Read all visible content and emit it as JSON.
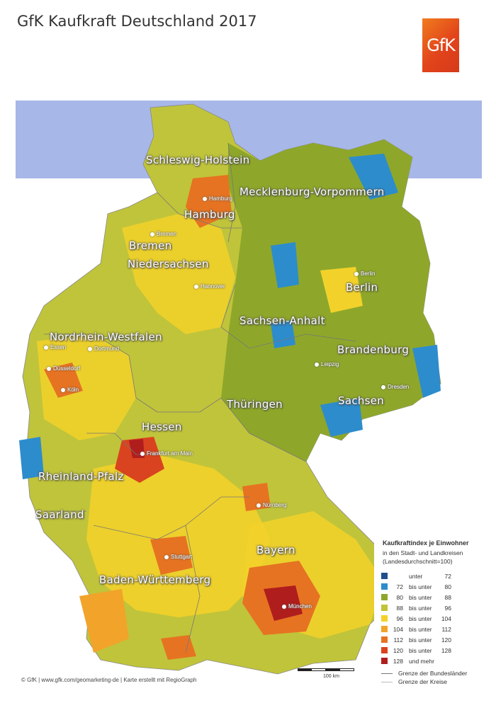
{
  "title": "GfK Kaufkraft Deutschland 2017",
  "logo_text": "GfK",
  "colors": {
    "sea": "#a7b7e8",
    "neighbors": "#ffffff",
    "lt72": "#1f4e8c",
    "c72_80": "#2d8ccc",
    "c80_88": "#8ea72a",
    "c88_96": "#c0c43a",
    "c96_104": "#f2d22a",
    "c104_112": "#f2a32a",
    "c112_120": "#e67322",
    "c120_128": "#d9431f",
    "c128": "#b01d1d"
  },
  "states": [
    {
      "name": "Schleswig-Holstein"
    },
    {
      "name": "Mecklenburg-Vorpommern"
    },
    {
      "name": "Hamburg"
    },
    {
      "name": "Bremen"
    },
    {
      "name": "Niedersachsen"
    },
    {
      "name": "Berlin"
    },
    {
      "name": "Sachsen-Anhalt"
    },
    {
      "name": "Brandenburg"
    },
    {
      "name": "Nordrhein-Westfalen"
    },
    {
      "name": "Thüringen"
    },
    {
      "name": "Sachsen"
    },
    {
      "name": "Hessen"
    },
    {
      "name": "Rheinland-Pfalz"
    },
    {
      "name": "Saarland"
    },
    {
      "name": "Bayern"
    },
    {
      "name": "Baden-Württemberg"
    }
  ],
  "cities": [
    {
      "name": "Hamburg"
    },
    {
      "name": "Bremen"
    },
    {
      "name": "Hannover"
    },
    {
      "name": "Berlin"
    },
    {
      "name": "Essen"
    },
    {
      "name": "Dortmund"
    },
    {
      "name": "Düsseldorf"
    },
    {
      "name": "Köln"
    },
    {
      "name": "Leipzig"
    },
    {
      "name": "Dresden"
    },
    {
      "name": "Frankfurt am Main"
    },
    {
      "name": "Nürnberg"
    },
    {
      "name": "Stuttgart"
    },
    {
      "name": "München"
    }
  ],
  "legend": {
    "title": "Kaufkraftindex je Einwohner",
    "subtitle1": "in den Stadt- und Landkreisen",
    "subtitle2": "(Landesdurchschnitt=100)",
    "rows": [
      {
        "from": "",
        "text": "unter",
        "to": "72"
      },
      {
        "from": "72",
        "text": "bis unter",
        "to": "80"
      },
      {
        "from": "80",
        "text": "bis unter",
        "to": "88"
      },
      {
        "from": "88",
        "text": "bis unter",
        "to": "96"
      },
      {
        "from": "96",
        "text": "bis unter",
        "to": "104"
      },
      {
        "from": "104",
        "text": "bis unter",
        "to": "112"
      },
      {
        "from": "112",
        "text": "bis unter",
        "to": "120"
      },
      {
        "from": "120",
        "text": "bis unter",
        "to": "128"
      },
      {
        "from": "128",
        "text": "und mehr",
        "to": ""
      }
    ],
    "line1": "Grenze der Bundesländer",
    "line2": "Grenze der Kreise"
  },
  "scale_label": "100 km",
  "credit": "© GfK | www.gfk.com/geomarketing-de | Karte erstellt mit RegioGraph"
}
